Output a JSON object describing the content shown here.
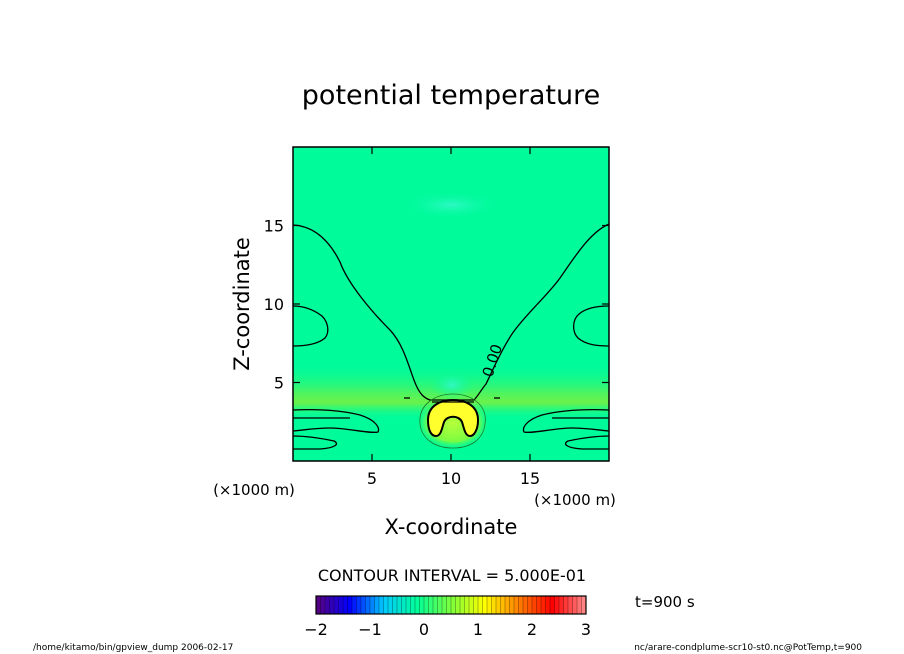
{
  "chart_data": {
    "type": "heatmap",
    "title": "potential temperature",
    "xlabel": "X-coordinate",
    "ylabel": "Z-coordinate",
    "x_unit": "(×1000 m)",
    "y_unit": "(×1000 m)",
    "xlim": [
      0,
      20
    ],
    "ylim": [
      0,
      20
    ],
    "x_ticks": [
      5,
      10,
      15
    ],
    "y_ticks": [
      5,
      10,
      15
    ],
    "contour_label": "0.00",
    "contour_interval_text": "CONTOUR INTERVAL = 5.000E-01",
    "colorbar": {
      "range": [
        -2,
        3
      ],
      "tick_labels": [
        "−2",
        "−1",
        "0",
        "1",
        "2",
        "3"
      ],
      "colors": [
        "#5a007a",
        "#0000ff",
        "#00c8ff",
        "#00ff9a",
        "#7cff3c",
        "#ffff00",
        "#ff8000",
        "#ff0000",
        "#ff8c8c"
      ]
    },
    "field_colors": {
      "background": "#00fb9b",
      "band": "#55f45a",
      "core": "#ffff2e",
      "dome": "#2dfbc4"
    },
    "time_label": "t=900 s"
  },
  "footer": {
    "left": "/home/kitamo/bin/gpview_dump  2006-02-17",
    "right": "nc/arare-condplume-scr10-st0.nc@PotTemp,t=900"
  }
}
